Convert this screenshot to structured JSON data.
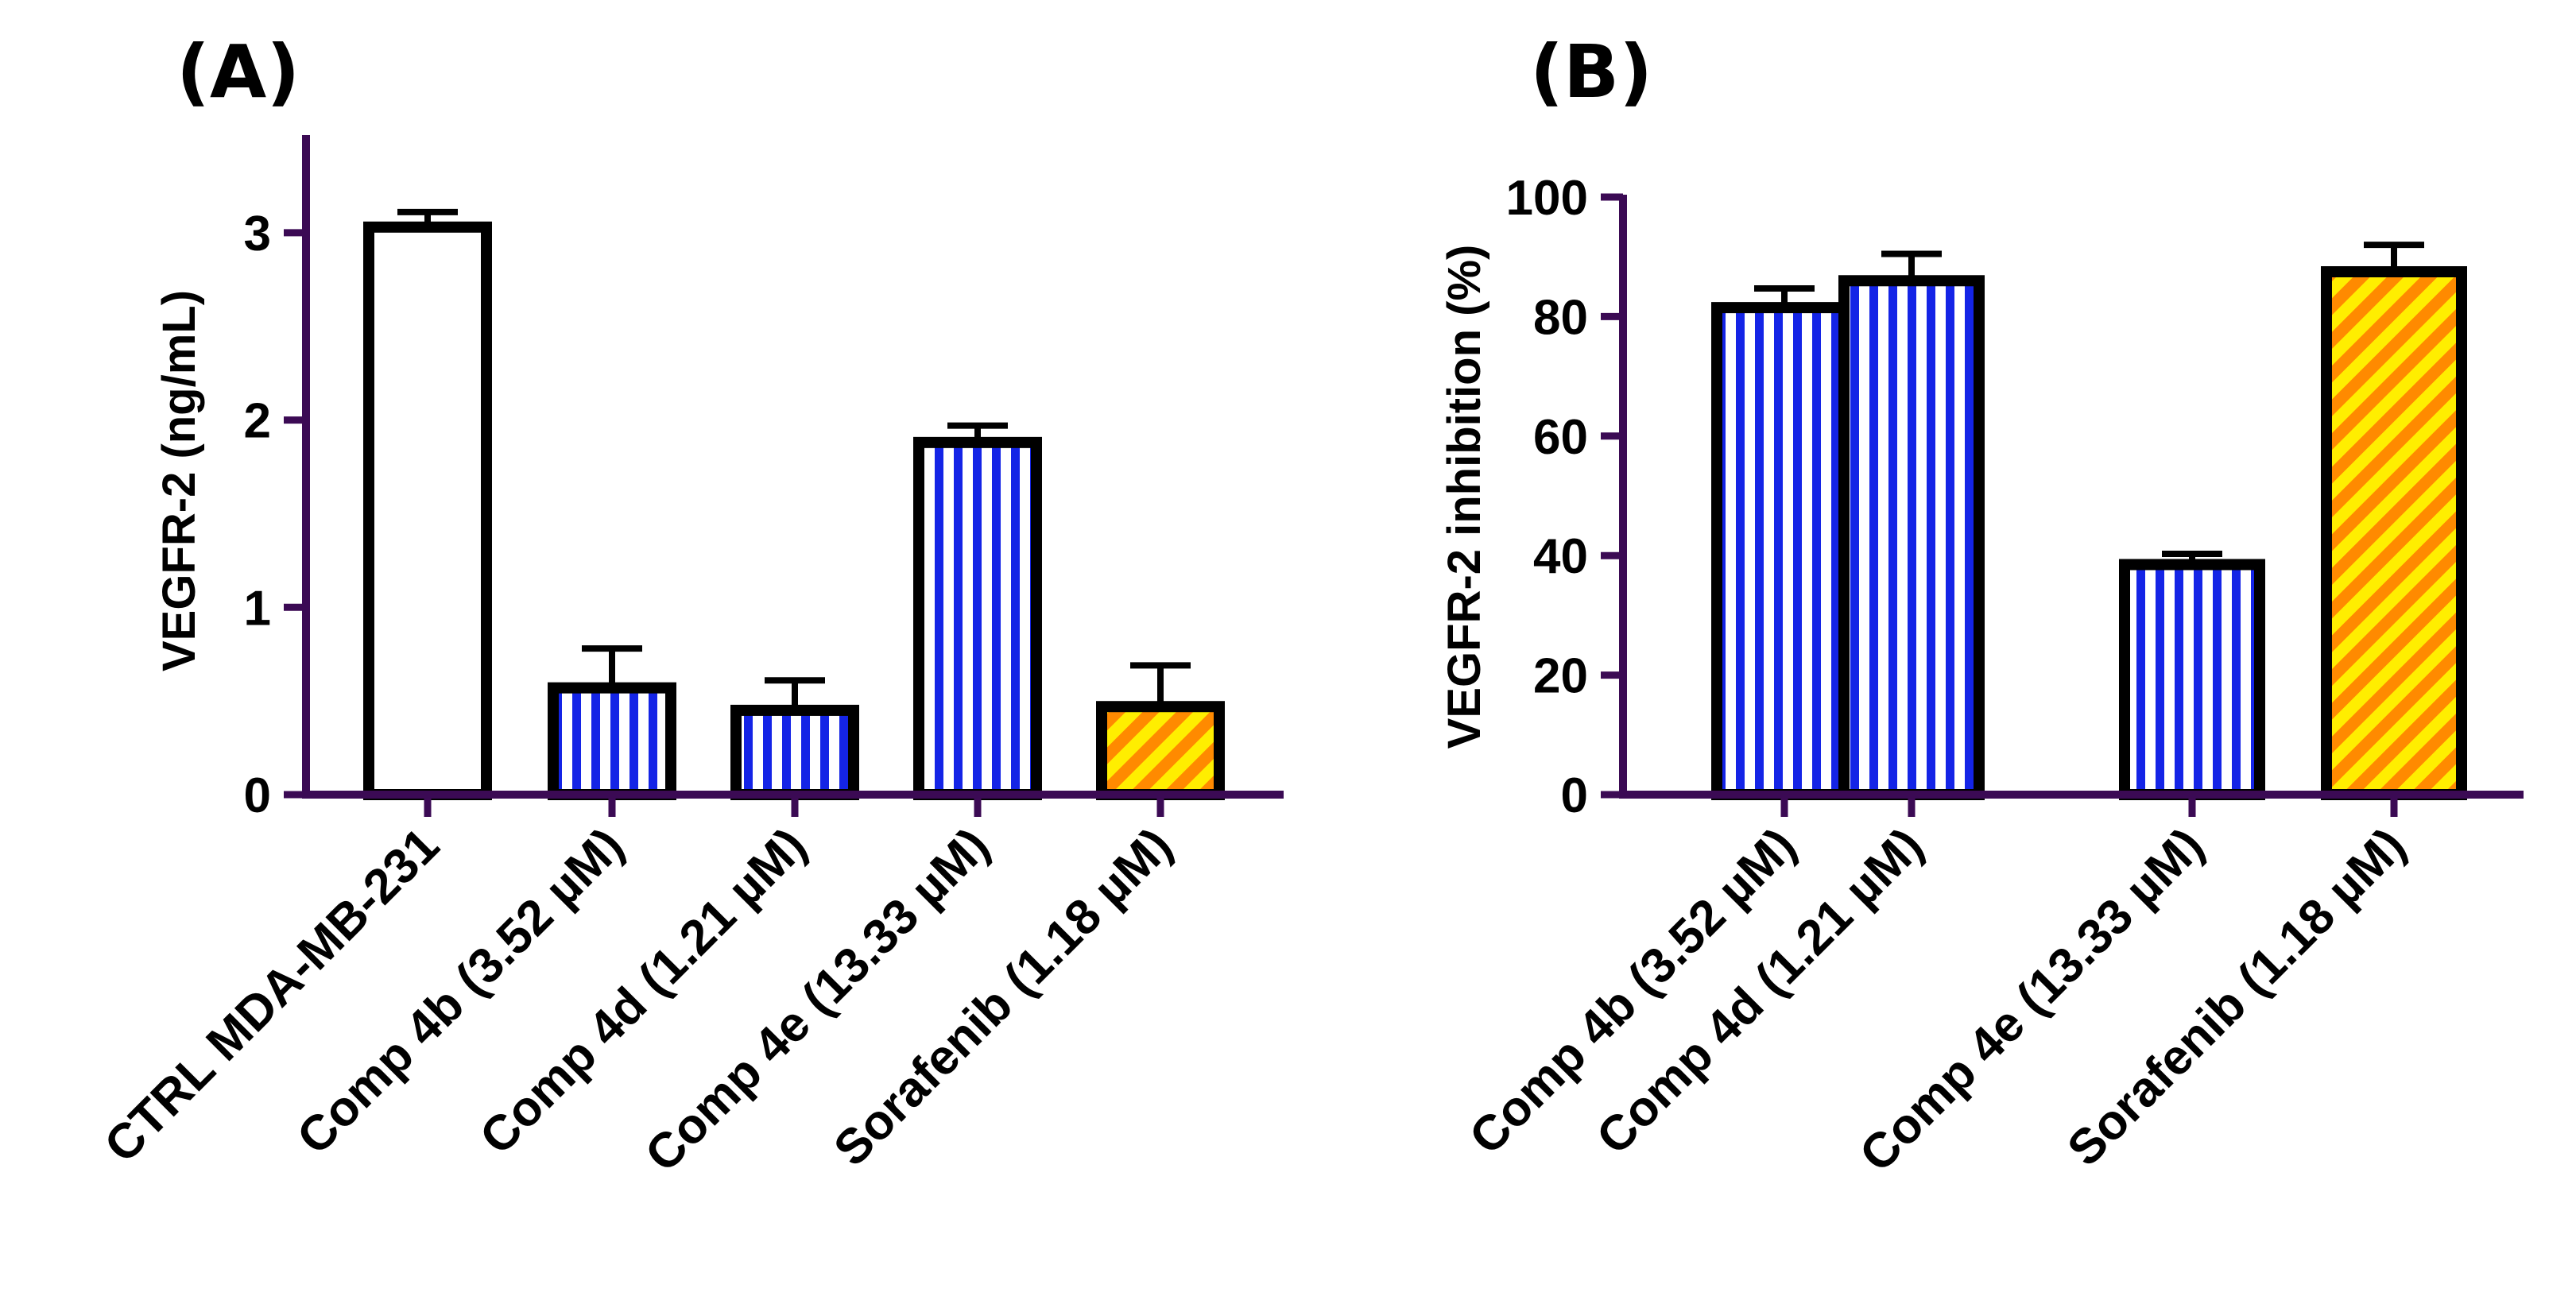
{
  "colors": {
    "axis": "#3b0a54",
    "bar_outline": "#000000",
    "control_fill": "#ffffff",
    "stripe_blue": "#1424e6",
    "stripe_white": "#ffffff",
    "sorafenib_orange": "#ff8a00",
    "sorafenib_yellow": "#ffee00"
  },
  "chart_data": [
    {
      "id": "A",
      "panel_label": "(A)",
      "type": "bar",
      "ylabel": "VEGFR-2 (ng/mL)",
      "ylim": [
        0,
        3.5
      ],
      "yticks": [
        0,
        1,
        2,
        3
      ],
      "ytick_labels": [
        "0",
        "1",
        "2",
        "3"
      ],
      "categories": [
        "CTRL MDA-MB-231",
        "Comp 4b (3.52 µM)",
        "Comp 4d (1.21 µM)",
        "Comp 4e (13.33 µM)",
        "Sorafenib (1.18 µM)"
      ],
      "values": [
        3.03,
        0.57,
        0.45,
        1.88,
        0.47
      ],
      "errors": [
        0.08,
        0.21,
        0.16,
        0.09,
        0.22
      ],
      "fills": [
        "white",
        "blue-vertical",
        "blue-vertical",
        "blue-vertical",
        "orange-diagonal"
      ]
    },
    {
      "id": "B",
      "panel_label": "(B)",
      "type": "bar",
      "ylabel": "VEGFR-2 inhibition (%)",
      "ylim": [
        0,
        100
      ],
      "yticks": [
        0,
        20,
        40,
        60,
        80,
        100
      ],
      "ytick_labels": [
        "0",
        "20",
        "40",
        "60",
        "80",
        "100"
      ],
      "categories": [
        "Comp 4b (3.52 µM)",
        "Comp 4d (1.21 µM)",
        "Comp 4e (13.33 µM)",
        "Sorafenib (1.18 µM)"
      ],
      "values": [
        81.5,
        86,
        38.5,
        87.5
      ],
      "errors": [
        3.2,
        4.5,
        1.8,
        4.5
      ],
      "fills": [
        "blue-vertical",
        "blue-vertical",
        "blue-vertical",
        "orange-diagonal"
      ]
    }
  ]
}
